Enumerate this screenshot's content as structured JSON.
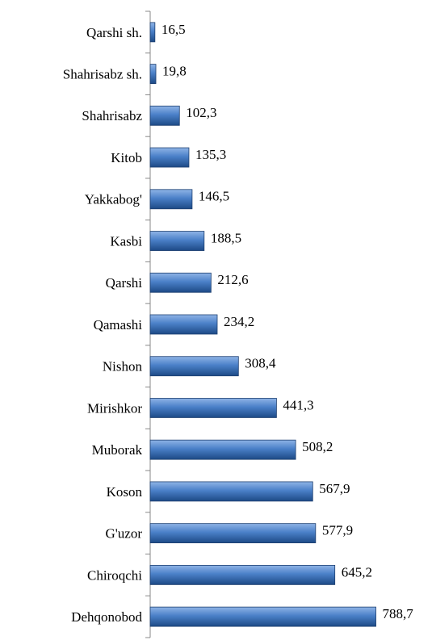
{
  "chart_data": {
    "type": "bar",
    "orientation": "horizontal",
    "categories": [
      "Qarshi sh.",
      "Shahrisabz sh.",
      "Shahrisabz",
      "Kitob",
      "Yakkabog'",
      "Kasbi",
      "Qarshi",
      "Qamashi",
      "Nishon",
      "Mirishkor",
      "Muborak",
      "Koson",
      "G'uzor",
      "Chiroqchi",
      "Dehqonobod"
    ],
    "values": [
      16.5,
      19.8,
      102.3,
      135.3,
      146.5,
      188.5,
      212.6,
      234.2,
      308.4,
      441.3,
      508.2,
      567.9,
      577.9,
      645.2,
      788.7
    ],
    "value_labels": [
      "16,5",
      "19,8",
      "102,3",
      "135,3",
      "146,5",
      "188,5",
      "212,6",
      "234,2",
      "308,4",
      "441,3",
      "508,2",
      "567,9",
      "577,9",
      "645,2",
      "788,7"
    ],
    "color": "#3a6fb5",
    "xlim": [
      0,
      900
    ]
  }
}
